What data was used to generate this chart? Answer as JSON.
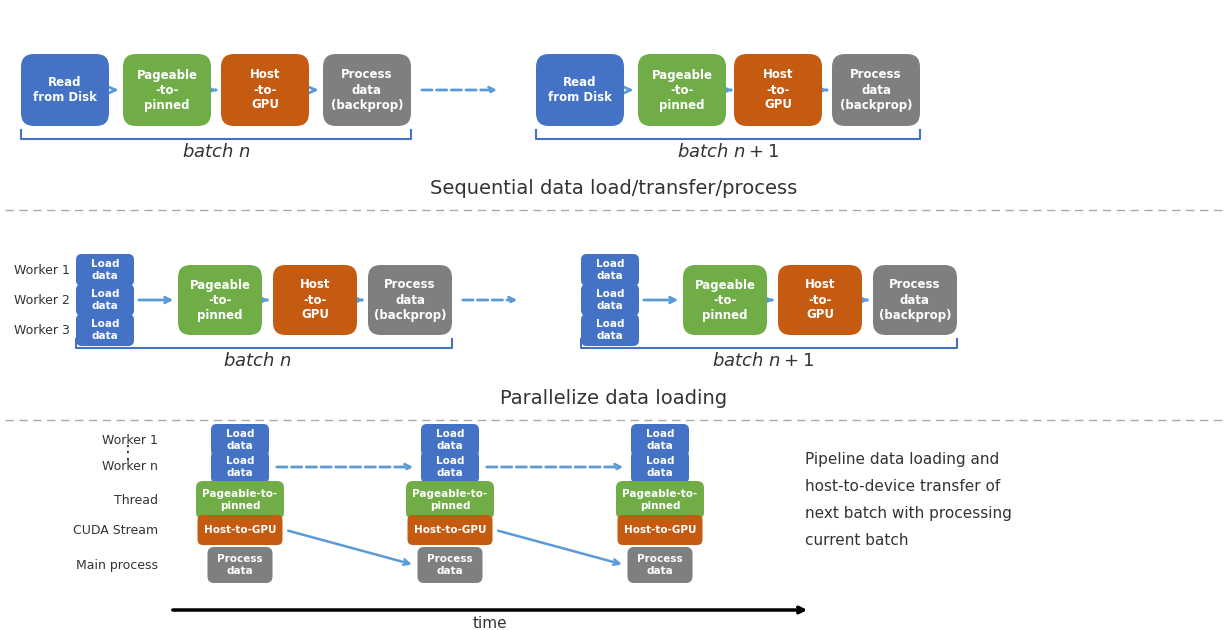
{
  "colors": {
    "blue": "#4472C4",
    "green": "#70AD47",
    "orange": "#C55A11",
    "gray": "#7F7F7F",
    "arrow": "#5B9BD5",
    "bg": "#FFFFFF",
    "divider": "#AAAAAA",
    "text_dark": "#333333"
  },
  "sec1_title": "Sequential data load/transfer/process",
  "sec2_title": "Parallelize data loading",
  "sec3_text": "Pipeline data loading and\nhost-to-device transfer of\nnext batch with processing\ncurrent batch",
  "time_label": "time",
  "batch_n": "batch $n$",
  "batch_n1": "batch $n+1$"
}
